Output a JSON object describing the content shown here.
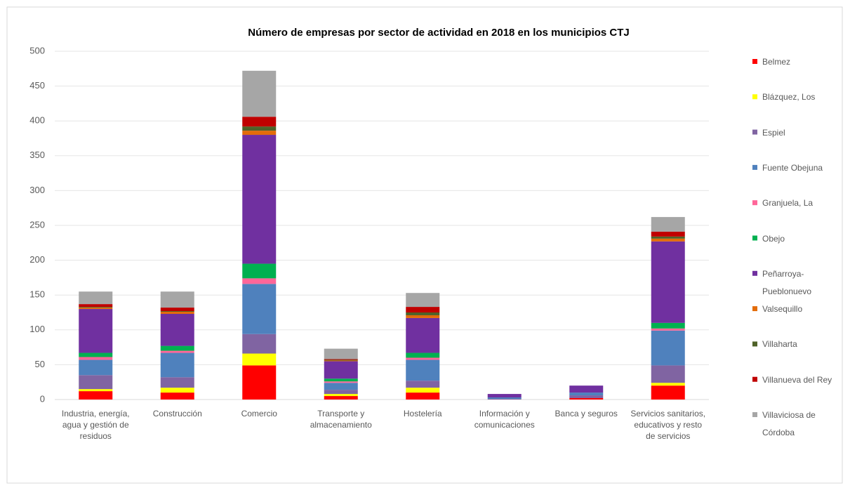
{
  "chart_data": {
    "type": "stacked_bar",
    "title": "Número de empresas por sector de actividad en 2018  en los  municipios CTJ",
    "categories": [
      "Industria, energía, agua y gestión de residuos",
      "Construcción",
      "Comercio",
      "Transporte y almacenamiento",
      "Hostelería",
      "Información y comunicaciones",
      "Banca y seguros",
      "Servicios sanitarios, educativos y resto de servicios"
    ],
    "series": [
      {
        "name": "Belmez",
        "color": "#ff0000",
        "values": [
          12,
          10,
          49,
          5,
          10,
          0,
          2,
          20
        ]
      },
      {
        "name": "Blázquez, Los",
        "color": "#ffff00",
        "values": [
          3,
          7,
          17,
          3,
          7,
          0,
          0,
          4
        ]
      },
      {
        "name": "Espiel",
        "color": "#8064a2",
        "values": [
          20,
          15,
          28,
          6,
          10,
          1,
          4,
          25
        ]
      },
      {
        "name": "Fuente Obejuna",
        "color": "#4f81bd",
        "values": [
          22,
          35,
          72,
          10,
          30,
          2,
          4,
          50
        ]
      },
      {
        "name": "Granjuela, La",
        "color": "#ff6699",
        "values": [
          4,
          3,
          8,
          2,
          3,
          0,
          0,
          3
        ]
      },
      {
        "name": "Obejo",
        "color": "#00b050",
        "values": [
          6,
          7,
          21,
          4,
          7,
          0,
          0,
          8
        ]
      },
      {
        "name": "Peñarroya-Pueblonuevo",
        "color": "#7030a0",
        "values": [
          63,
          46,
          185,
          25,
          50,
          5,
          10,
          117
        ]
      },
      {
        "name": "Valsequillo",
        "color": "#e36c09",
        "values": [
          2,
          3,
          6,
          1,
          4,
          0,
          0,
          4
        ]
      },
      {
        "name": "Villaharta",
        "color": "#4f6228",
        "values": [
          1,
          1,
          6,
          1,
          4,
          0,
          0,
          3
        ]
      },
      {
        "name": "Villanueva del Rey",
        "color": "#c00000",
        "values": [
          4,
          5,
          14,
          1,
          8,
          0,
          0,
          7
        ]
      },
      {
        "name": "Villaviciosa de Córdoba",
        "color": "#a6a6a6",
        "values": [
          18,
          23,
          66,
          15,
          20,
          0,
          0,
          21
        ]
      }
    ],
    "ylim": [
      0,
      500
    ],
    "yticks": [
      0,
      50,
      100,
      150,
      200,
      250,
      300,
      350,
      400,
      450,
      500
    ],
    "grid": true,
    "legend": "right"
  }
}
